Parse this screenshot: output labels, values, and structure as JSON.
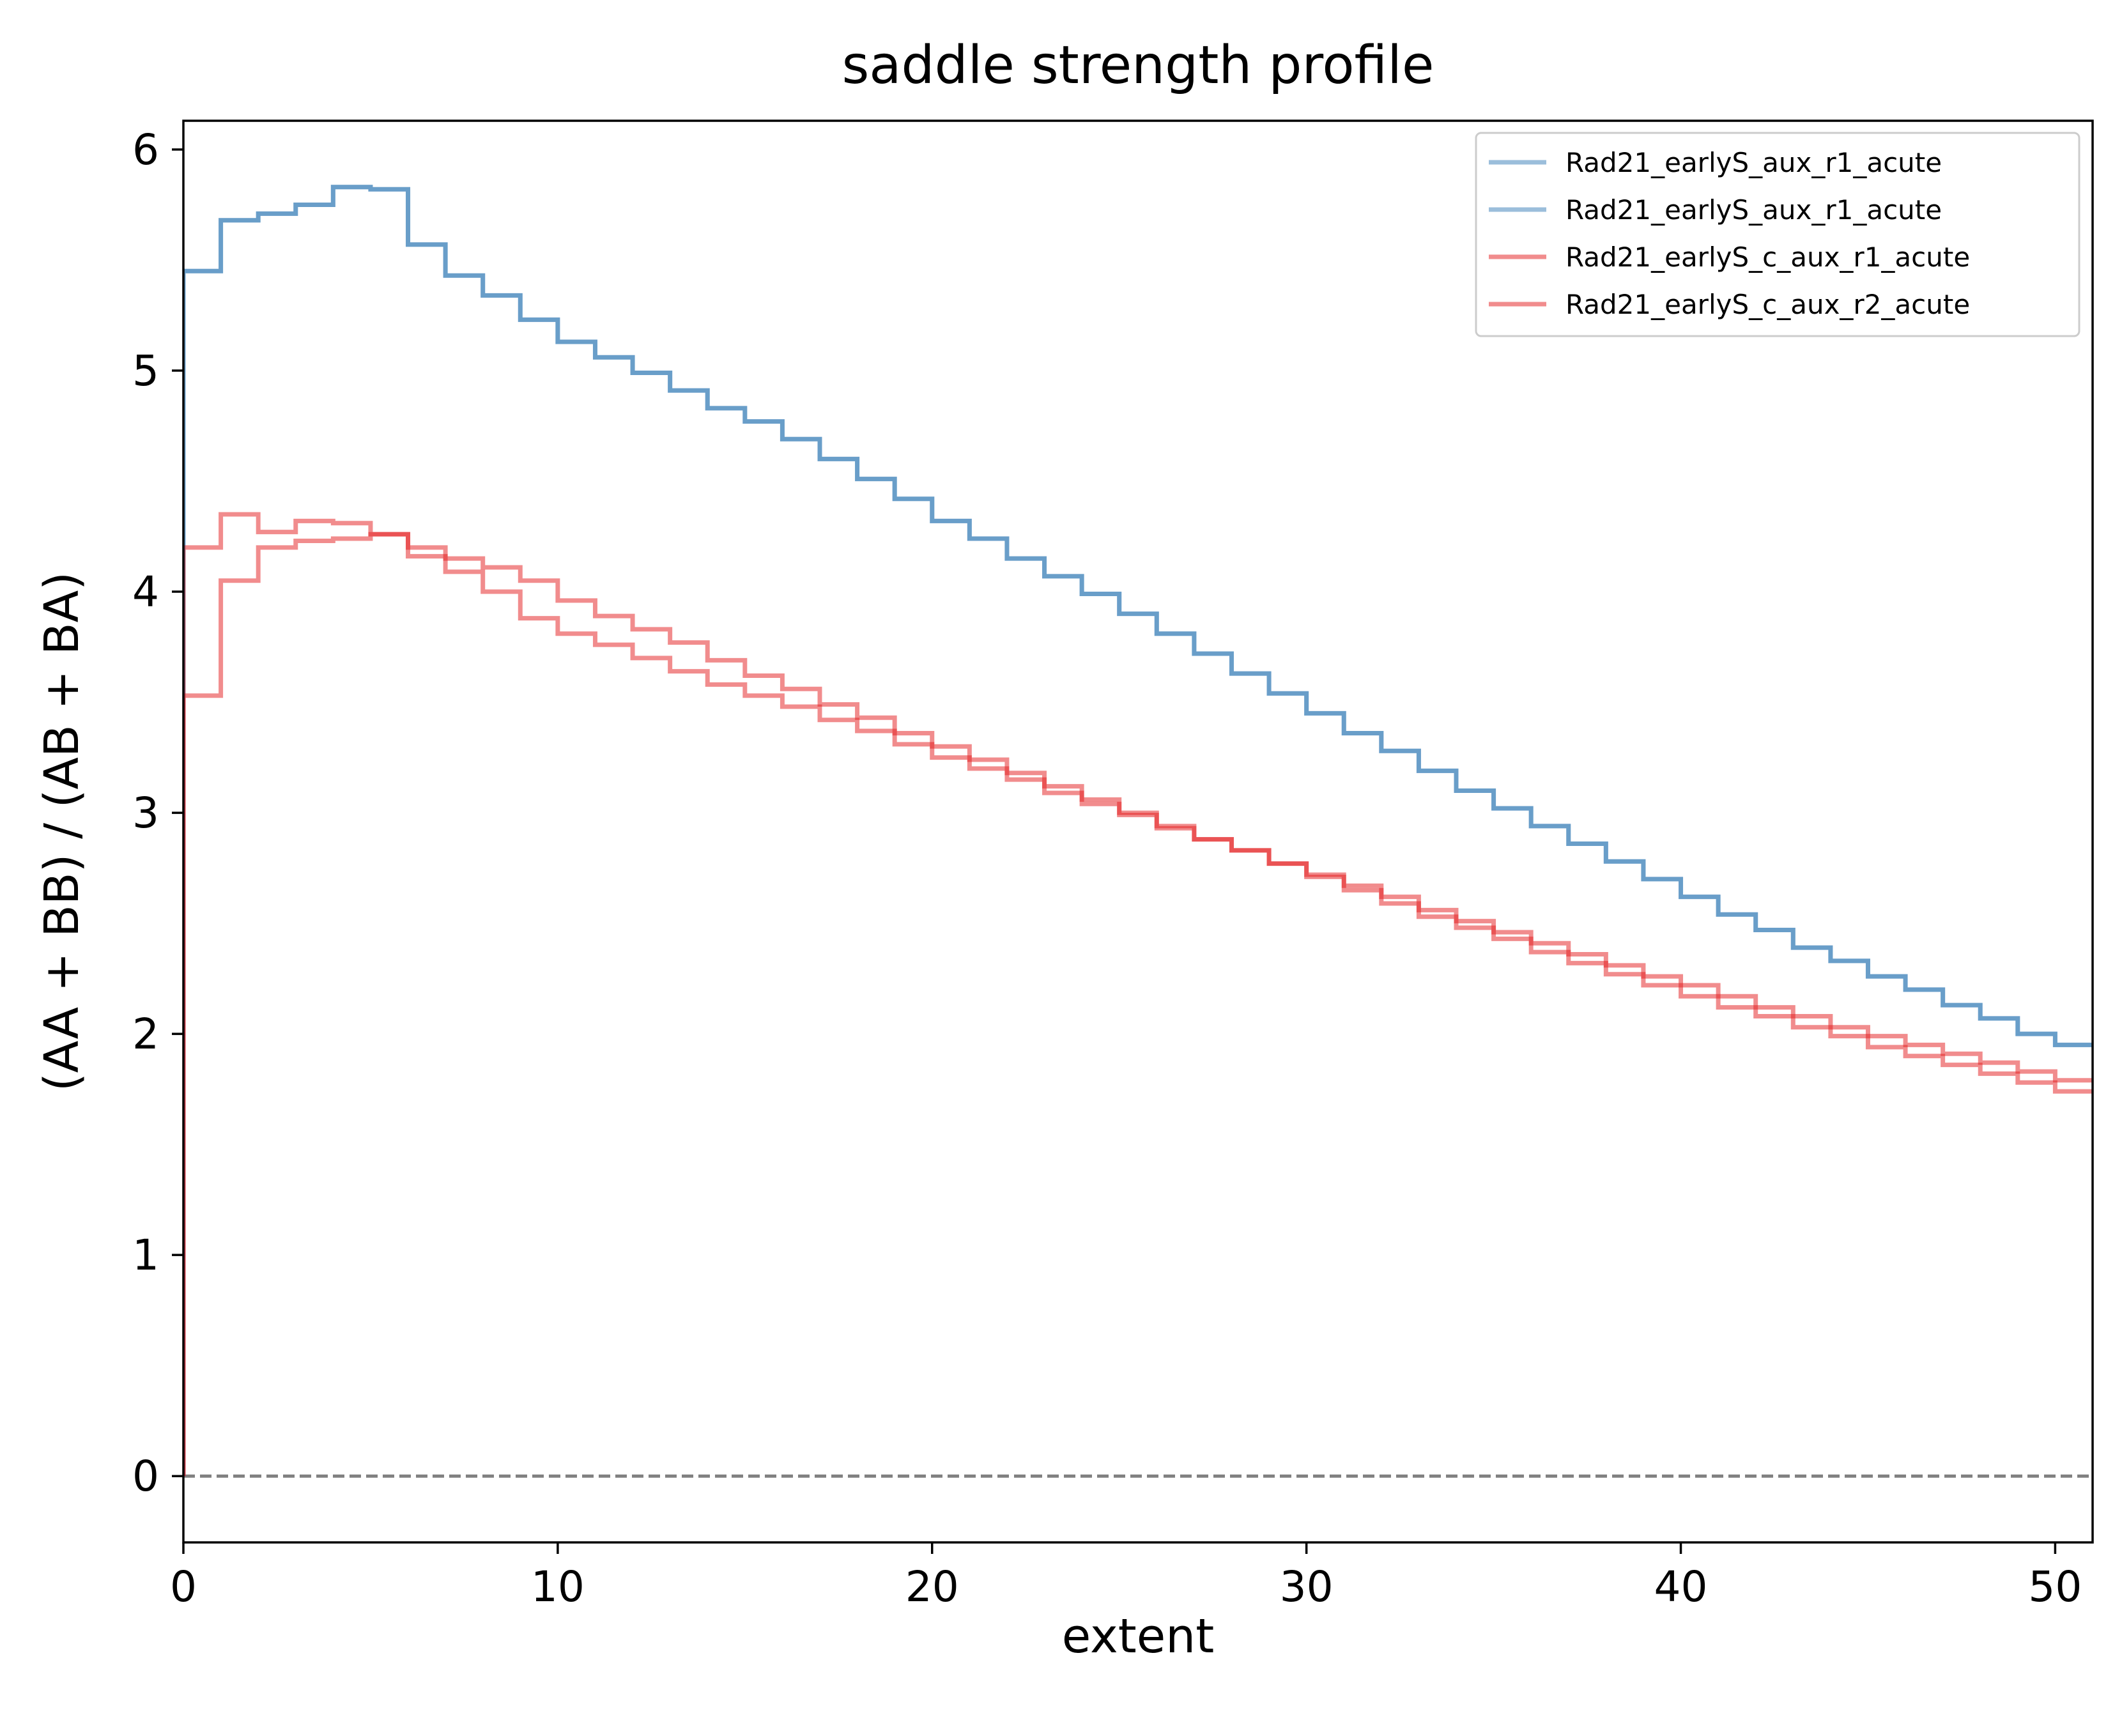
{
  "chart_data": {
    "type": "line",
    "subtype": "step",
    "title": "saddle strength profile",
    "xlabel": "extent",
    "ylabel": "(AA + BB) / (AB + BA)",
    "xlim": [
      0,
      51
    ],
    "ylim": [
      -0.3,
      6.13
    ],
    "xticks": [
      0,
      10,
      20,
      30,
      40,
      50
    ],
    "yticks": [
      0,
      1,
      2,
      3,
      4,
      5,
      6
    ],
    "grid": false,
    "legend_position": "top-right",
    "reference_line": {
      "y": 0,
      "style": "dashed",
      "color": "#808080"
    },
    "series": [
      {
        "name": "Rad21_earlyS_aux_r1_acute",
        "color": "#377eb8",
        "opacity": 0.5,
        "values": [
          5.45,
          5.68,
          5.71,
          5.75,
          5.83,
          5.82,
          5.57,
          5.43,
          5.34,
          5.23,
          5.13,
          5.06,
          4.99,
          4.91,
          4.83,
          4.77,
          4.69,
          4.6,
          4.51,
          4.42,
          4.32,
          4.24,
          4.15,
          4.07,
          3.99,
          3.9,
          3.81,
          3.72,
          3.63,
          3.54,
          3.45,
          3.36,
          3.28,
          3.19,
          3.1,
          3.02,
          2.94,
          2.86,
          2.78,
          2.7,
          2.62,
          2.54,
          2.47,
          2.39,
          2.33,
          2.26,
          2.2,
          2.13,
          2.07,
          2.0,
          1.95
        ]
      },
      {
        "name": "Rad21_earlyS_aux_r1_acute",
        "color": "#377eb8",
        "opacity": 0.5,
        "values": [
          5.45,
          5.68,
          5.71,
          5.75,
          5.83,
          5.82,
          5.57,
          5.43,
          5.34,
          5.23,
          5.13,
          5.06,
          4.99,
          4.91,
          4.83,
          4.77,
          4.69,
          4.6,
          4.51,
          4.42,
          4.32,
          4.24,
          4.15,
          4.07,
          3.99,
          3.9,
          3.81,
          3.72,
          3.63,
          3.54,
          3.45,
          3.36,
          3.28,
          3.19,
          3.1,
          3.02,
          2.94,
          2.86,
          2.78,
          2.7,
          2.62,
          2.54,
          2.47,
          2.39,
          2.33,
          2.26,
          2.2,
          2.13,
          2.07,
          2.0,
          1.95
        ]
      },
      {
        "name": "Rad21_earlyS_c_aux_r1_acute",
        "color": "#e41a1c",
        "opacity": 0.5,
        "values": [
          4.2,
          4.35,
          4.27,
          4.32,
          4.31,
          4.26,
          4.2,
          4.15,
          4.11,
          4.05,
          3.96,
          3.89,
          3.83,
          3.77,
          3.69,
          3.62,
          3.56,
          3.49,
          3.43,
          3.36,
          3.3,
          3.24,
          3.18,
          3.12,
          3.06,
          3.0,
          2.94,
          2.88,
          2.83,
          2.77,
          2.71,
          2.65,
          2.59,
          2.53,
          2.48,
          2.43,
          2.37,
          2.32,
          2.27,
          2.22,
          2.17,
          2.12,
          2.08,
          2.03,
          1.99,
          1.94,
          1.9,
          1.86,
          1.82,
          1.78,
          1.74
        ]
      },
      {
        "name": "Rad21_earlyS_c_aux_r2_acute",
        "color": "#e41a1c",
        "opacity": 0.5,
        "values": [
          3.53,
          4.05,
          4.2,
          4.23,
          4.24,
          4.26,
          4.16,
          4.09,
          4.0,
          3.88,
          3.81,
          3.76,
          3.7,
          3.64,
          3.58,
          3.53,
          3.48,
          3.42,
          3.37,
          3.31,
          3.25,
          3.2,
          3.15,
          3.09,
          3.04,
          2.99,
          2.93,
          2.88,
          2.83,
          2.77,
          2.72,
          2.67,
          2.62,
          2.56,
          2.51,
          2.46,
          2.41,
          2.36,
          2.31,
          2.26,
          2.22,
          2.17,
          2.12,
          2.08,
          2.03,
          1.99,
          1.95,
          1.91,
          1.87,
          1.83,
          1.79
        ]
      }
    ]
  }
}
